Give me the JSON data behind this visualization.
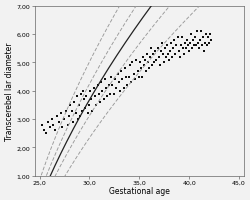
{
  "xlabel": "Gestational age",
  "ylabel": "Transcerebel lar diameter",
  "xlim": [
    24.5,
    45.5
  ],
  "ylim": [
    1.0,
    7.0
  ],
  "xticks": [
    25.0,
    30.0,
    35.0,
    40.0,
    45.0
  ],
  "yticks": [
    1.0,
    2.0,
    3.0,
    4.0,
    5.0,
    6.0,
    7.0
  ],
  "ytick_labels": [
    "1,00",
    "2,00",
    "3,00",
    "4,00",
    "5,00",
    "6,00",
    "7,00"
  ],
  "xtick_labels": [
    "25,0",
    "30,0",
    "35,0",
    "40,0",
    "45,0"
  ],
  "bg_color": "#f2f2f2",
  "scatter_color": "#111111",
  "line_color": "#222222",
  "dash_color": "#999999",
  "scatter_points": [
    [
      25.2,
      2.8
    ],
    [
      25.4,
      2.6
    ],
    [
      25.6,
      2.5
    ],
    [
      25.8,
      2.9
    ],
    [
      26.0,
      2.7
    ],
    [
      26.2,
      3.0
    ],
    [
      26.4,
      2.8
    ],
    [
      26.6,
      2.6
    ],
    [
      26.8,
      3.1
    ],
    [
      27.0,
      2.9
    ],
    [
      27.2,
      3.2
    ],
    [
      27.3,
      2.7
    ],
    [
      27.5,
      3.0
    ],
    [
      27.7,
      3.3
    ],
    [
      27.9,
      2.8
    ],
    [
      28.0,
      3.1
    ],
    [
      28.1,
      3.5
    ],
    [
      28.3,
      3.3
    ],
    [
      28.4,
      2.9
    ],
    [
      28.5,
      3.6
    ],
    [
      28.7,
      3.2
    ],
    [
      28.8,
      3.8
    ],
    [
      28.9,
      3.0
    ],
    [
      29.0,
      3.5
    ],
    [
      29.1,
      3.1
    ],
    [
      29.2,
      3.9
    ],
    [
      29.3,
      3.3
    ],
    [
      29.4,
      4.0
    ],
    [
      29.5,
      3.7
    ],
    [
      29.6,
      3.4
    ],
    [
      29.7,
      3.8
    ],
    [
      29.9,
      3.2
    ],
    [
      30.0,
      3.5
    ],
    [
      30.1,
      4.0
    ],
    [
      30.2,
      3.7
    ],
    [
      30.3,
      3.3
    ],
    [
      30.5,
      4.1
    ],
    [
      30.6,
      3.8
    ],
    [
      30.7,
      3.5
    ],
    [
      30.9,
      4.2
    ],
    [
      31.0,
      3.9
    ],
    [
      31.1,
      3.6
    ],
    [
      31.2,
      4.3
    ],
    [
      31.3,
      4.0
    ],
    [
      31.5,
      3.7
    ],
    [
      31.6,
      4.4
    ],
    [
      31.7,
      4.1
    ],
    [
      31.8,
      3.8
    ],
    [
      32.0,
      4.2
    ],
    [
      32.1,
      3.9
    ],
    [
      32.2,
      4.5
    ],
    [
      32.3,
      4.2
    ],
    [
      32.5,
      3.9
    ],
    [
      32.6,
      4.4
    ],
    [
      32.7,
      4.1
    ],
    [
      32.9,
      4.6
    ],
    [
      33.0,
      4.3
    ],
    [
      33.1,
      4.0
    ],
    [
      33.2,
      4.7
    ],
    [
      33.3,
      4.4
    ],
    [
      33.5,
      4.1
    ],
    [
      33.6,
      4.8
    ],
    [
      33.7,
      4.5
    ],
    [
      33.8,
      4.2
    ],
    [
      34.0,
      4.5
    ],
    [
      34.1,
      4.9
    ],
    [
      34.2,
      4.3
    ],
    [
      34.3,
      5.0
    ],
    [
      34.5,
      4.6
    ],
    [
      34.6,
      4.4
    ],
    [
      34.7,
      5.1
    ],
    [
      34.9,
      4.7
    ],
    [
      35.0,
      4.5
    ],
    [
      35.1,
      5.0
    ],
    [
      35.2,
      4.8
    ],
    [
      35.3,
      4.5
    ],
    [
      35.4,
      5.2
    ],
    [
      35.5,
      4.9
    ],
    [
      35.6,
      5.1
    ],
    [
      35.7,
      4.7
    ],
    [
      35.8,
      5.3
    ],
    [
      35.9,
      5.0
    ],
    [
      36.0,
      4.8
    ],
    [
      36.1,
      5.2
    ],
    [
      36.2,
      5.5
    ],
    [
      36.3,
      4.9
    ],
    [
      36.4,
      5.3
    ],
    [
      36.5,
      5.0
    ],
    [
      36.6,
      5.4
    ],
    [
      36.7,
      5.1
    ],
    [
      36.9,
      5.5
    ],
    [
      37.0,
      5.2
    ],
    [
      37.1,
      4.9
    ],
    [
      37.2,
      5.4
    ],
    [
      37.3,
      5.7
    ],
    [
      37.4,
      5.3
    ],
    [
      37.5,
      5.0
    ],
    [
      37.6,
      5.5
    ],
    [
      37.7,
      5.2
    ],
    [
      37.8,
      5.6
    ],
    [
      37.9,
      5.3
    ],
    [
      38.0,
      5.1
    ],
    [
      38.1,
      5.4
    ],
    [
      38.2,
      5.7
    ],
    [
      38.3,
      5.2
    ],
    [
      38.4,
      5.5
    ],
    [
      38.5,
      5.8
    ],
    [
      38.6,
      5.3
    ],
    [
      38.7,
      5.6
    ],
    [
      38.9,
      5.9
    ],
    [
      39.0,
      5.4
    ],
    [
      39.1,
      5.2
    ],
    [
      39.2,
      5.6
    ],
    [
      39.3,
      5.9
    ],
    [
      39.4,
      5.5
    ],
    [
      39.5,
      5.3
    ],
    [
      39.6,
      5.7
    ],
    [
      39.7,
      5.5
    ],
    [
      39.8,
      5.8
    ],
    [
      39.9,
      5.6
    ],
    [
      40.0,
      5.4
    ],
    [
      40.1,
      5.7
    ],
    [
      40.2,
      6.0
    ],
    [
      40.3,
      5.5
    ],
    [
      40.4,
      5.8
    ],
    [
      40.5,
      5.6
    ],
    [
      40.6,
      5.9
    ],
    [
      40.7,
      5.6
    ],
    [
      40.8,
      6.1
    ],
    [
      40.9,
      5.7
    ],
    [
      41.0,
      5.5
    ],
    [
      41.1,
      5.8
    ],
    [
      41.2,
      6.1
    ],
    [
      41.3,
      5.6
    ],
    [
      41.4,
      5.9
    ],
    [
      41.5,
      5.4
    ],
    [
      41.6,
      5.7
    ],
    [
      41.7,
      6.0
    ],
    [
      41.8,
      5.6
    ],
    [
      41.9,
      5.9
    ],
    [
      42.0,
      5.7
    ],
    [
      42.1,
      6.0
    ],
    [
      42.2,
      5.8
    ]
  ],
  "mean_a": -8.5,
  "mean_b": 3.85,
  "mean_c": 0.5,
  "outer_sd": 1.35,
  "inner_sd": 0.72
}
